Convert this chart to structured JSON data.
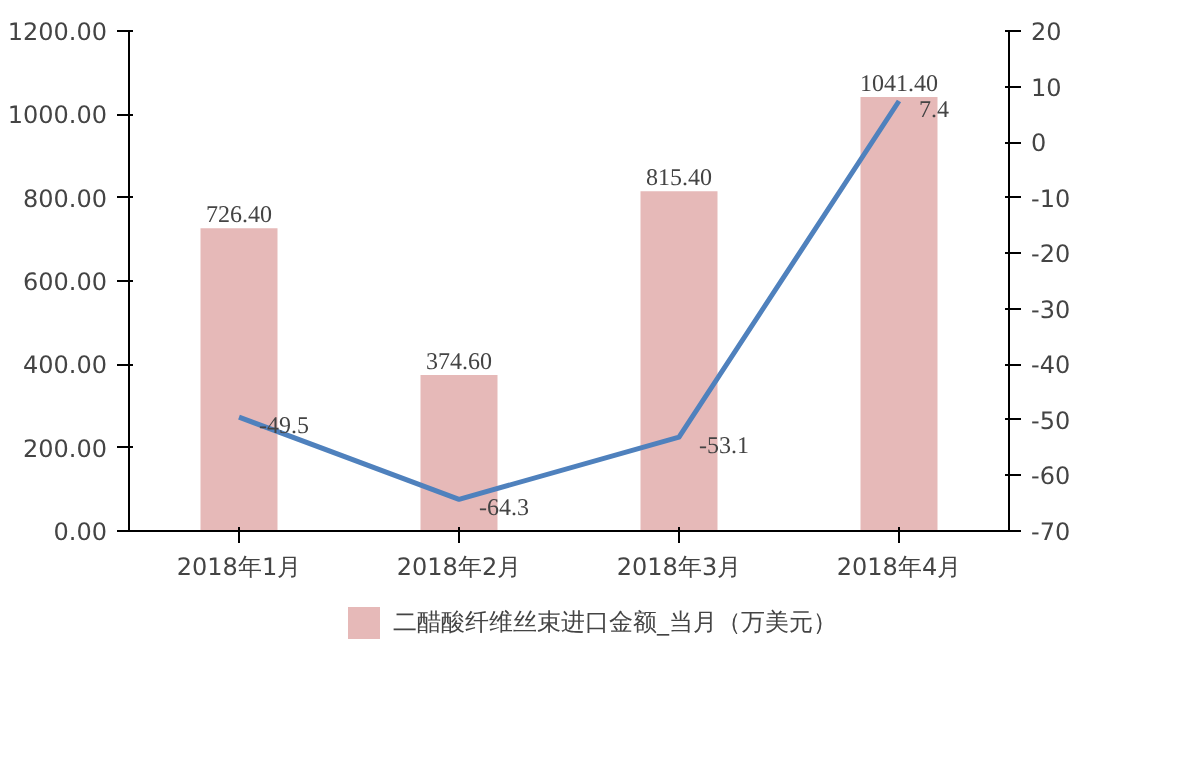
{
  "chart_data": {
    "type": "bar",
    "categories": [
      "2018年1月",
      "2018年2月",
      "2018年3月",
      "2018年4月"
    ],
    "series": [
      {
        "name": "二醋酸纤维丝束进口金额_当月（万美元）",
        "color": "#e6b9b8",
        "values": [
          726.4,
          374.6,
          815.4,
          1041.4
        ],
        "value_labels": [
          "726.40",
          "374.60",
          "815.40",
          "1041.40"
        ]
      },
      {
        "type": "line",
        "axis": "y2",
        "color": "#4f81bd",
        "values": [
          -49.5,
          -64.3,
          -53.1,
          7.4
        ],
        "value_labels": [
          "-49.5",
          "-64.3",
          "-53.1",
          "7.4"
        ]
      }
    ],
    "ylim": [
      0,
      1200
    ],
    "yticks": [
      {
        "value": 0,
        "label": "0.00"
      },
      {
        "value": 200,
        "label": "200.00"
      },
      {
        "value": 400,
        "label": "400.00"
      },
      {
        "value": 600,
        "label": "600.00"
      },
      {
        "value": 800,
        "label": "800.00"
      },
      {
        "value": 1000,
        "label": "1000.00"
      },
      {
        "value": 1200,
        "label": "1200.00"
      }
    ],
    "y2lim": [
      -70,
      20
    ],
    "y2ticks": [
      -70,
      -60,
      -50,
      -40,
      -30,
      -20,
      -10,
      0,
      10,
      20
    ],
    "grid": false,
    "legend": "bottom",
    "marker": "none",
    "line_style": "solid"
  }
}
